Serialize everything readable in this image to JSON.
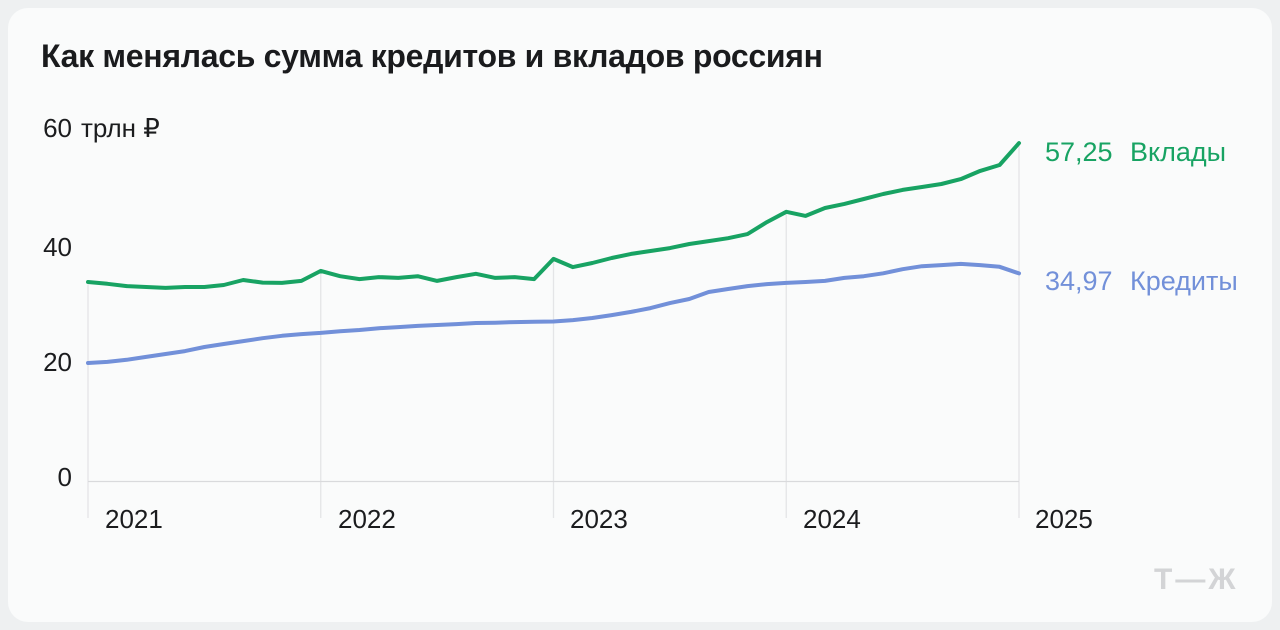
{
  "title": "Как менялась сумма кредитов и вкладов россиян",
  "logo": "Т—Ж",
  "colors": {
    "page_bg": "#eef0f1",
    "card_bg": "#fafbfb",
    "gridline": "#e4e5e7",
    "axis_line": "#d9dadc",
    "title_text": "#1a1b1d",
    "axis_text": "#1b1c1e",
    "deposits_green": "#18a363",
    "credits_blue": "#7290d9",
    "logo_gray": "#d3d4d6"
  },
  "chart_data": {
    "type": "line",
    "title": "Как менялась сумма кредитов и вкладов россиян",
    "y_axis": {
      "top_label_value": "60",
      "top_label_unit": "трлн ₽",
      "ticks": [
        "0",
        "20",
        "40"
      ],
      "ylim": [
        0,
        60
      ],
      "grid": "none (only zero baseline drawn)"
    },
    "x_axis": {
      "ticks": [
        "2021",
        "2022",
        "2023",
        "2024",
        "2025"
      ],
      "range_note": "monthly points, Jan 2021 – Jan 2025",
      "grid": "vertical year lines drawn from the top (deposits) series down past the baseline"
    },
    "legend_position": "right of line ends",
    "series": [
      {
        "name": "Вклады",
        "end_label": "57,25",
        "end_value": 57.25,
        "color": "#18a363",
        "values": [
          33.5,
          33.2,
          32.8,
          32.65,
          32.5,
          32.65,
          32.65,
          33.0,
          33.85,
          33.4,
          33.35,
          33.7,
          35.4,
          34.5,
          34.0,
          34.35,
          34.2,
          34.5,
          33.7,
          34.35,
          34.9,
          34.2,
          34.35,
          34.0,
          37.45,
          36.05,
          36.75,
          37.6,
          38.3,
          38.8,
          39.3,
          40.0,
          40.5,
          41.0,
          41.7,
          43.75,
          45.5,
          44.8,
          46.15,
          46.85,
          47.7,
          48.55,
          49.25,
          49.75,
          50.25,
          51.1,
          52.5,
          53.5,
          57.25
        ]
      },
      {
        "name": "Кредиты",
        "end_label": "34,97",
        "end_value": 34.97,
        "color": "#7290d9",
        "values": [
          19.65,
          19.85,
          20.2,
          20.7,
          21.2,
          21.7,
          22.4,
          22.9,
          23.4,
          23.9,
          24.3,
          24.6,
          24.8,
          25.1,
          25.3,
          25.6,
          25.8,
          26.0,
          26.15,
          26.3,
          26.5,
          26.55,
          26.65,
          26.7,
          26.75,
          27.0,
          27.35,
          27.85,
          28.4,
          29.05,
          29.9,
          30.6,
          31.8,
          32.3,
          32.8,
          33.15,
          33.35,
          33.5,
          33.7,
          34.2,
          34.5,
          35.0,
          35.7,
          36.2,
          36.4,
          36.6,
          36.4,
          36.1,
          34.97
        ]
      }
    ]
  }
}
